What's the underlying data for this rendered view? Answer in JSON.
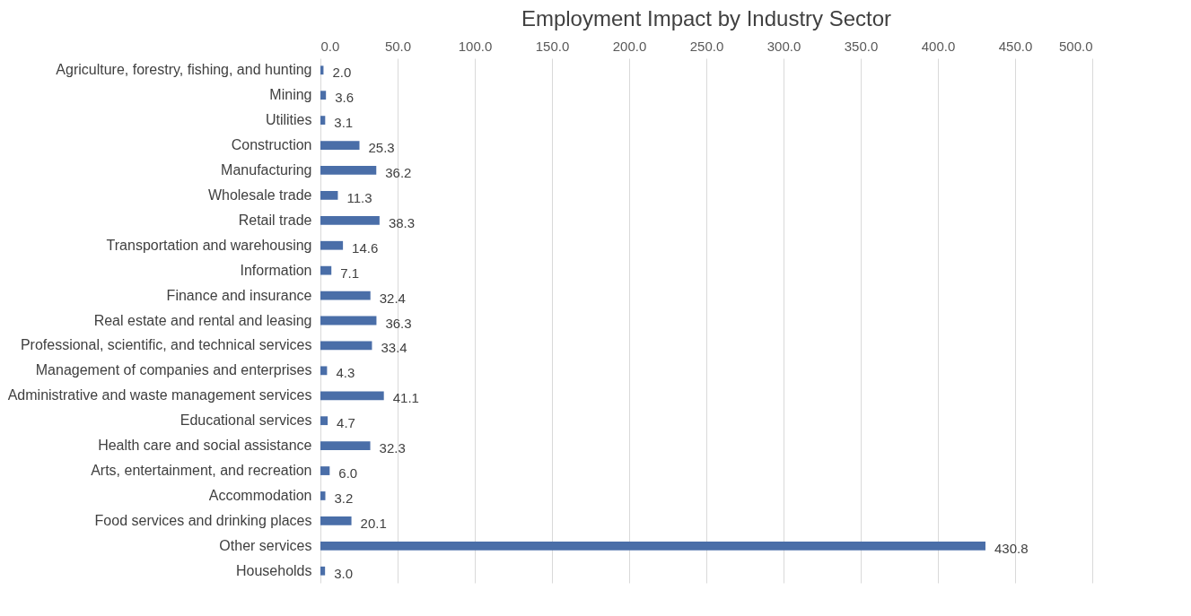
{
  "chart_data": {
    "type": "bar",
    "orientation": "horizontal",
    "title": "Employment Impact by Industry Sector",
    "categories": [
      "Agriculture, forestry, fishing, and hunting",
      "Mining",
      "Utilities",
      "Construction",
      "Manufacturing",
      "Wholesale trade",
      "Retail trade",
      "Transportation and warehousing",
      "Information",
      "Finance and insurance",
      "Real estate and rental and leasing",
      "Professional, scientific, and technical services",
      "Management of companies and enterprises",
      "Administrative and waste management services",
      "Educational services",
      "Health care and social assistance",
      "Arts, entertainment, and recreation",
      "Accommodation",
      "Food services and drinking places",
      "Other services",
      "Households"
    ],
    "values": [
      2.0,
      3.6,
      3.1,
      25.3,
      36.2,
      11.3,
      38.3,
      14.6,
      7.1,
      32.4,
      36.3,
      33.4,
      4.3,
      41.1,
      4.7,
      32.3,
      6.0,
      3.2,
      20.1,
      430.8,
      3.0
    ],
    "value_labels": [
      "2.0",
      "3.6",
      "3.1",
      "25.3",
      "36.2",
      "11.3",
      "38.3",
      "14.6",
      "7.1",
      "32.4",
      "36.3",
      "33.4",
      "4.3",
      "41.1",
      "4.7",
      "32.3",
      "6.0",
      "3.2",
      "20.1",
      "430.8",
      "3.0"
    ],
    "color": "#4a6ea8",
    "xlim": [
      0,
      500
    ],
    "xticks": [
      {
        "value": 0,
        "label": "0.0"
      },
      {
        "value": 50,
        "label": "50.0"
      },
      {
        "value": 100,
        "label": "100.0"
      },
      {
        "value": 150,
        "label": "150.0"
      },
      {
        "value": 200,
        "label": "200.0"
      },
      {
        "value": 250,
        "label": "250.0"
      },
      {
        "value": 300,
        "label": "300.0"
      },
      {
        "value": 350,
        "label": "350.0"
      },
      {
        "value": 400,
        "label": "400.0"
      },
      {
        "value": 450,
        "label": "450.0"
      },
      {
        "value": 500,
        "label": "500.0"
      }
    ],
    "grid": "x"
  }
}
